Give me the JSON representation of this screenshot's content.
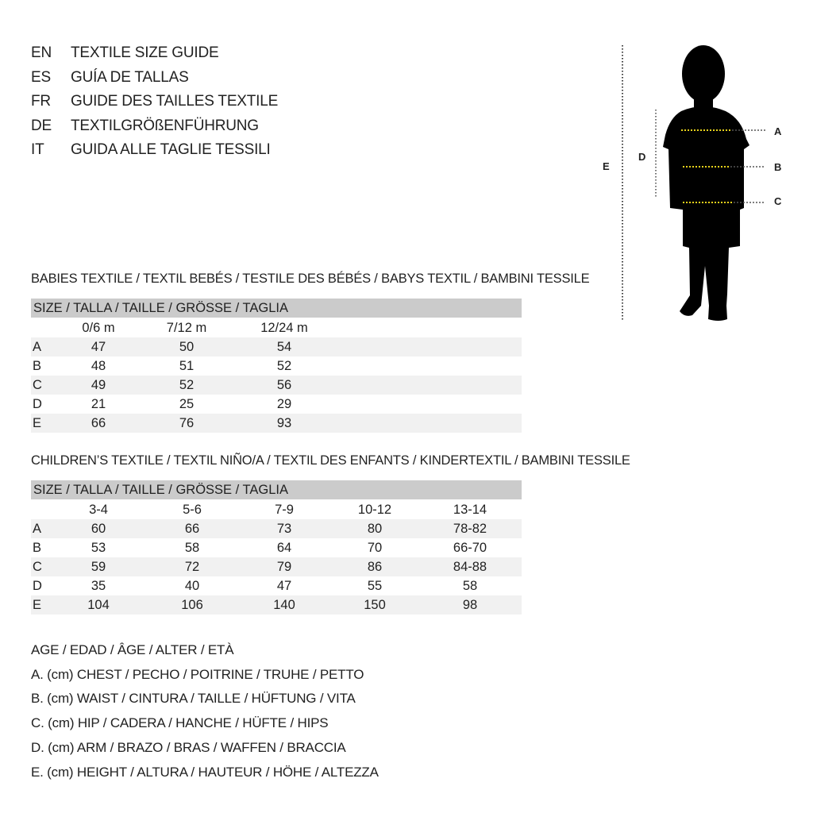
{
  "title_lines": [
    {
      "code": "EN",
      "text": "TEXTILE SIZE GUIDE"
    },
    {
      "code": "ES",
      "text": "GUÍA DE TALLAS"
    },
    {
      "code": "FR",
      "text": "GUIDE DES TAILLES TEXTILE"
    },
    {
      "code": "DE",
      "text": "TEXTILGRÖßENFÜHRUNG"
    },
    {
      "code": "IT",
      "text": "GUIDA ALLE TAGLIE TESSILI"
    }
  ],
  "figure": {
    "labels": {
      "A": "A",
      "B": "B",
      "C": "C",
      "D": "D",
      "E": "E"
    },
    "marker_color": "#e8d21a"
  },
  "babies": {
    "title": "BABIES TEXTILE / TEXTIL BEBÉS / TESTILE DES BÉBÉS / BABYS TEXTIL / BAMBINI TESSILE",
    "header": "SIZE / TALLA / TAILLE / GRÖSSE / TAGLIA",
    "columns": [
      "0/6 m",
      "7/12 m",
      "12/24 m"
    ],
    "rows": [
      {
        "label": "A",
        "values": [
          "47",
          "50",
          "54"
        ]
      },
      {
        "label": "B",
        "values": [
          "48",
          "51",
          "52"
        ]
      },
      {
        "label": "C",
        "values": [
          "49",
          "52",
          "56"
        ]
      },
      {
        "label": "D",
        "values": [
          "21",
          "25",
          "29"
        ]
      },
      {
        "label": "E",
        "values": [
          "66",
          "76",
          "93"
        ]
      }
    ]
  },
  "children": {
    "title": "CHILDREN’S TEXTILE / TEXTIL NIÑO/A / TEXTIL DES ENFANTS / KINDERTEXTIL / BAMBINI TESSILE",
    "header": "SIZE / TALLA / TAILLE / GRÖSSE / TAGLIA",
    "columns": [
      "3-4",
      "5-6",
      "7-9",
      "10-12",
      "13-14"
    ],
    "rows": [
      {
        "label": "A",
        "values": [
          "60",
          "66",
          "73",
          "80",
          "78-82"
        ]
      },
      {
        "label": "B",
        "values": [
          "53",
          "58",
          "64",
          "70",
          "66-70"
        ]
      },
      {
        "label": "C",
        "values": [
          "59",
          "72",
          "79",
          "86",
          "84-88"
        ]
      },
      {
        "label": "D",
        "values": [
          "35",
          "40",
          "47",
          "55",
          "58"
        ]
      },
      {
        "label": "E",
        "values": [
          "104",
          "106",
          "140",
          "150",
          "98"
        ]
      }
    ]
  },
  "legend": [
    "AGE / EDAD / ÂGE / ALTER / ETÀ",
    "A. (cm) CHEST / PECHO / POITRINE / TRUHE / PETTO",
    "B. (cm) WAIST / CINTURA / TAILLE / HÜFTUNG / VITA",
    "C. (cm) HIP / CADERA / HANCHE / HÜFTE / HIPS",
    "D. (cm) ARM / BRAZO / BRAS / WAFFEN / BRACCIA",
    "E. (cm) HEIGHT / ALTURA / HAUTEUR / HÖHE / ALTEZZA"
  ]
}
